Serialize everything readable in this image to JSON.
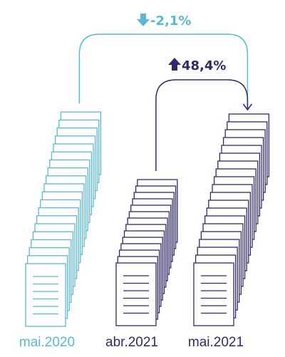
{
  "chart_data": {
    "type": "bar",
    "categories": [
      "mai.2020",
      "abr.2021",
      "mai.2021"
    ],
    "values": [
      20,
      14,
      20
    ],
    "colors": [
      "#5ab8d4",
      "#2f2b6b",
      "#2f2b6b"
    ],
    "comparisons": [
      {
        "from": "mai.2020",
        "to": "mai.2021",
        "label": "-2,1%",
        "direction": "down",
        "color": "#5ab8d4"
      },
      {
        "from": "abr.2021",
        "to": "mai.2021",
        "label": "48,4%",
        "direction": "up",
        "color": "#2f2b6b"
      }
    ],
    "title": "",
    "xlabel": "",
    "ylabel": ""
  }
}
